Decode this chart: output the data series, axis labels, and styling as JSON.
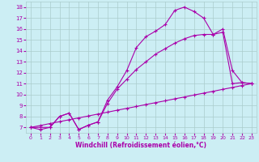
{
  "line1_x": [
    0,
    1,
    2,
    3,
    4,
    5,
    6,
    7,
    8,
    9,
    10,
    11,
    12,
    13,
    14,
    15,
    16,
    17,
    18,
    19,
    20,
    21,
    22,
    23
  ],
  "line1_y": [
    7.0,
    6.8,
    7.0,
    8.0,
    8.3,
    6.8,
    7.2,
    7.5,
    9.5,
    10.7,
    12.2,
    14.3,
    15.3,
    15.8,
    16.4,
    17.7,
    18.0,
    17.6,
    17.0,
    15.5,
    16.0,
    12.2,
    11.1,
    11.0
  ],
  "line2_x": [
    0,
    1,
    2,
    3,
    4,
    5,
    6,
    7,
    8,
    9,
    10,
    11,
    12,
    13,
    14,
    15,
    16,
    17,
    18,
    19,
    20,
    21,
    22,
    23
  ],
  "line2_y": [
    7.0,
    7.0,
    7.0,
    8.0,
    8.3,
    6.8,
    7.2,
    7.5,
    9.2,
    10.5,
    11.4,
    12.3,
    13.0,
    13.7,
    14.2,
    14.7,
    15.1,
    15.4,
    15.5,
    15.5,
    15.7,
    11.0,
    11.1,
    11.0
  ],
  "line3_x": [
    0,
    1,
    2,
    3,
    4,
    5,
    6,
    7,
    8,
    9,
    10,
    11,
    12,
    13,
    14,
    15,
    16,
    17,
    18,
    19,
    20,
    21,
    22,
    23
  ],
  "line3_y": [
    7.0,
    7.17,
    7.35,
    7.52,
    7.7,
    7.87,
    8.04,
    8.22,
    8.39,
    8.57,
    8.74,
    8.91,
    9.09,
    9.26,
    9.43,
    9.61,
    9.78,
    9.96,
    10.13,
    10.3,
    10.48,
    10.65,
    10.83,
    11.0
  ],
  "color": "#aa00aa",
  "bg_color": "#cceef4",
  "grid_color": "#aacccc",
  "ylabel_vals": [
    7,
    8,
    9,
    10,
    11,
    12,
    13,
    14,
    15,
    16,
    17,
    18
  ],
  "xlabel_vals": [
    0,
    1,
    2,
    3,
    4,
    5,
    6,
    7,
    8,
    9,
    10,
    11,
    12,
    13,
    14,
    15,
    16,
    17,
    18,
    19,
    20,
    21,
    22,
    23
  ],
  "xlabel": "Windchill (Refroidissement éolien,°C)",
  "ylim": [
    6.5,
    18.5
  ],
  "xlim": [
    -0.5,
    23.5
  ]
}
